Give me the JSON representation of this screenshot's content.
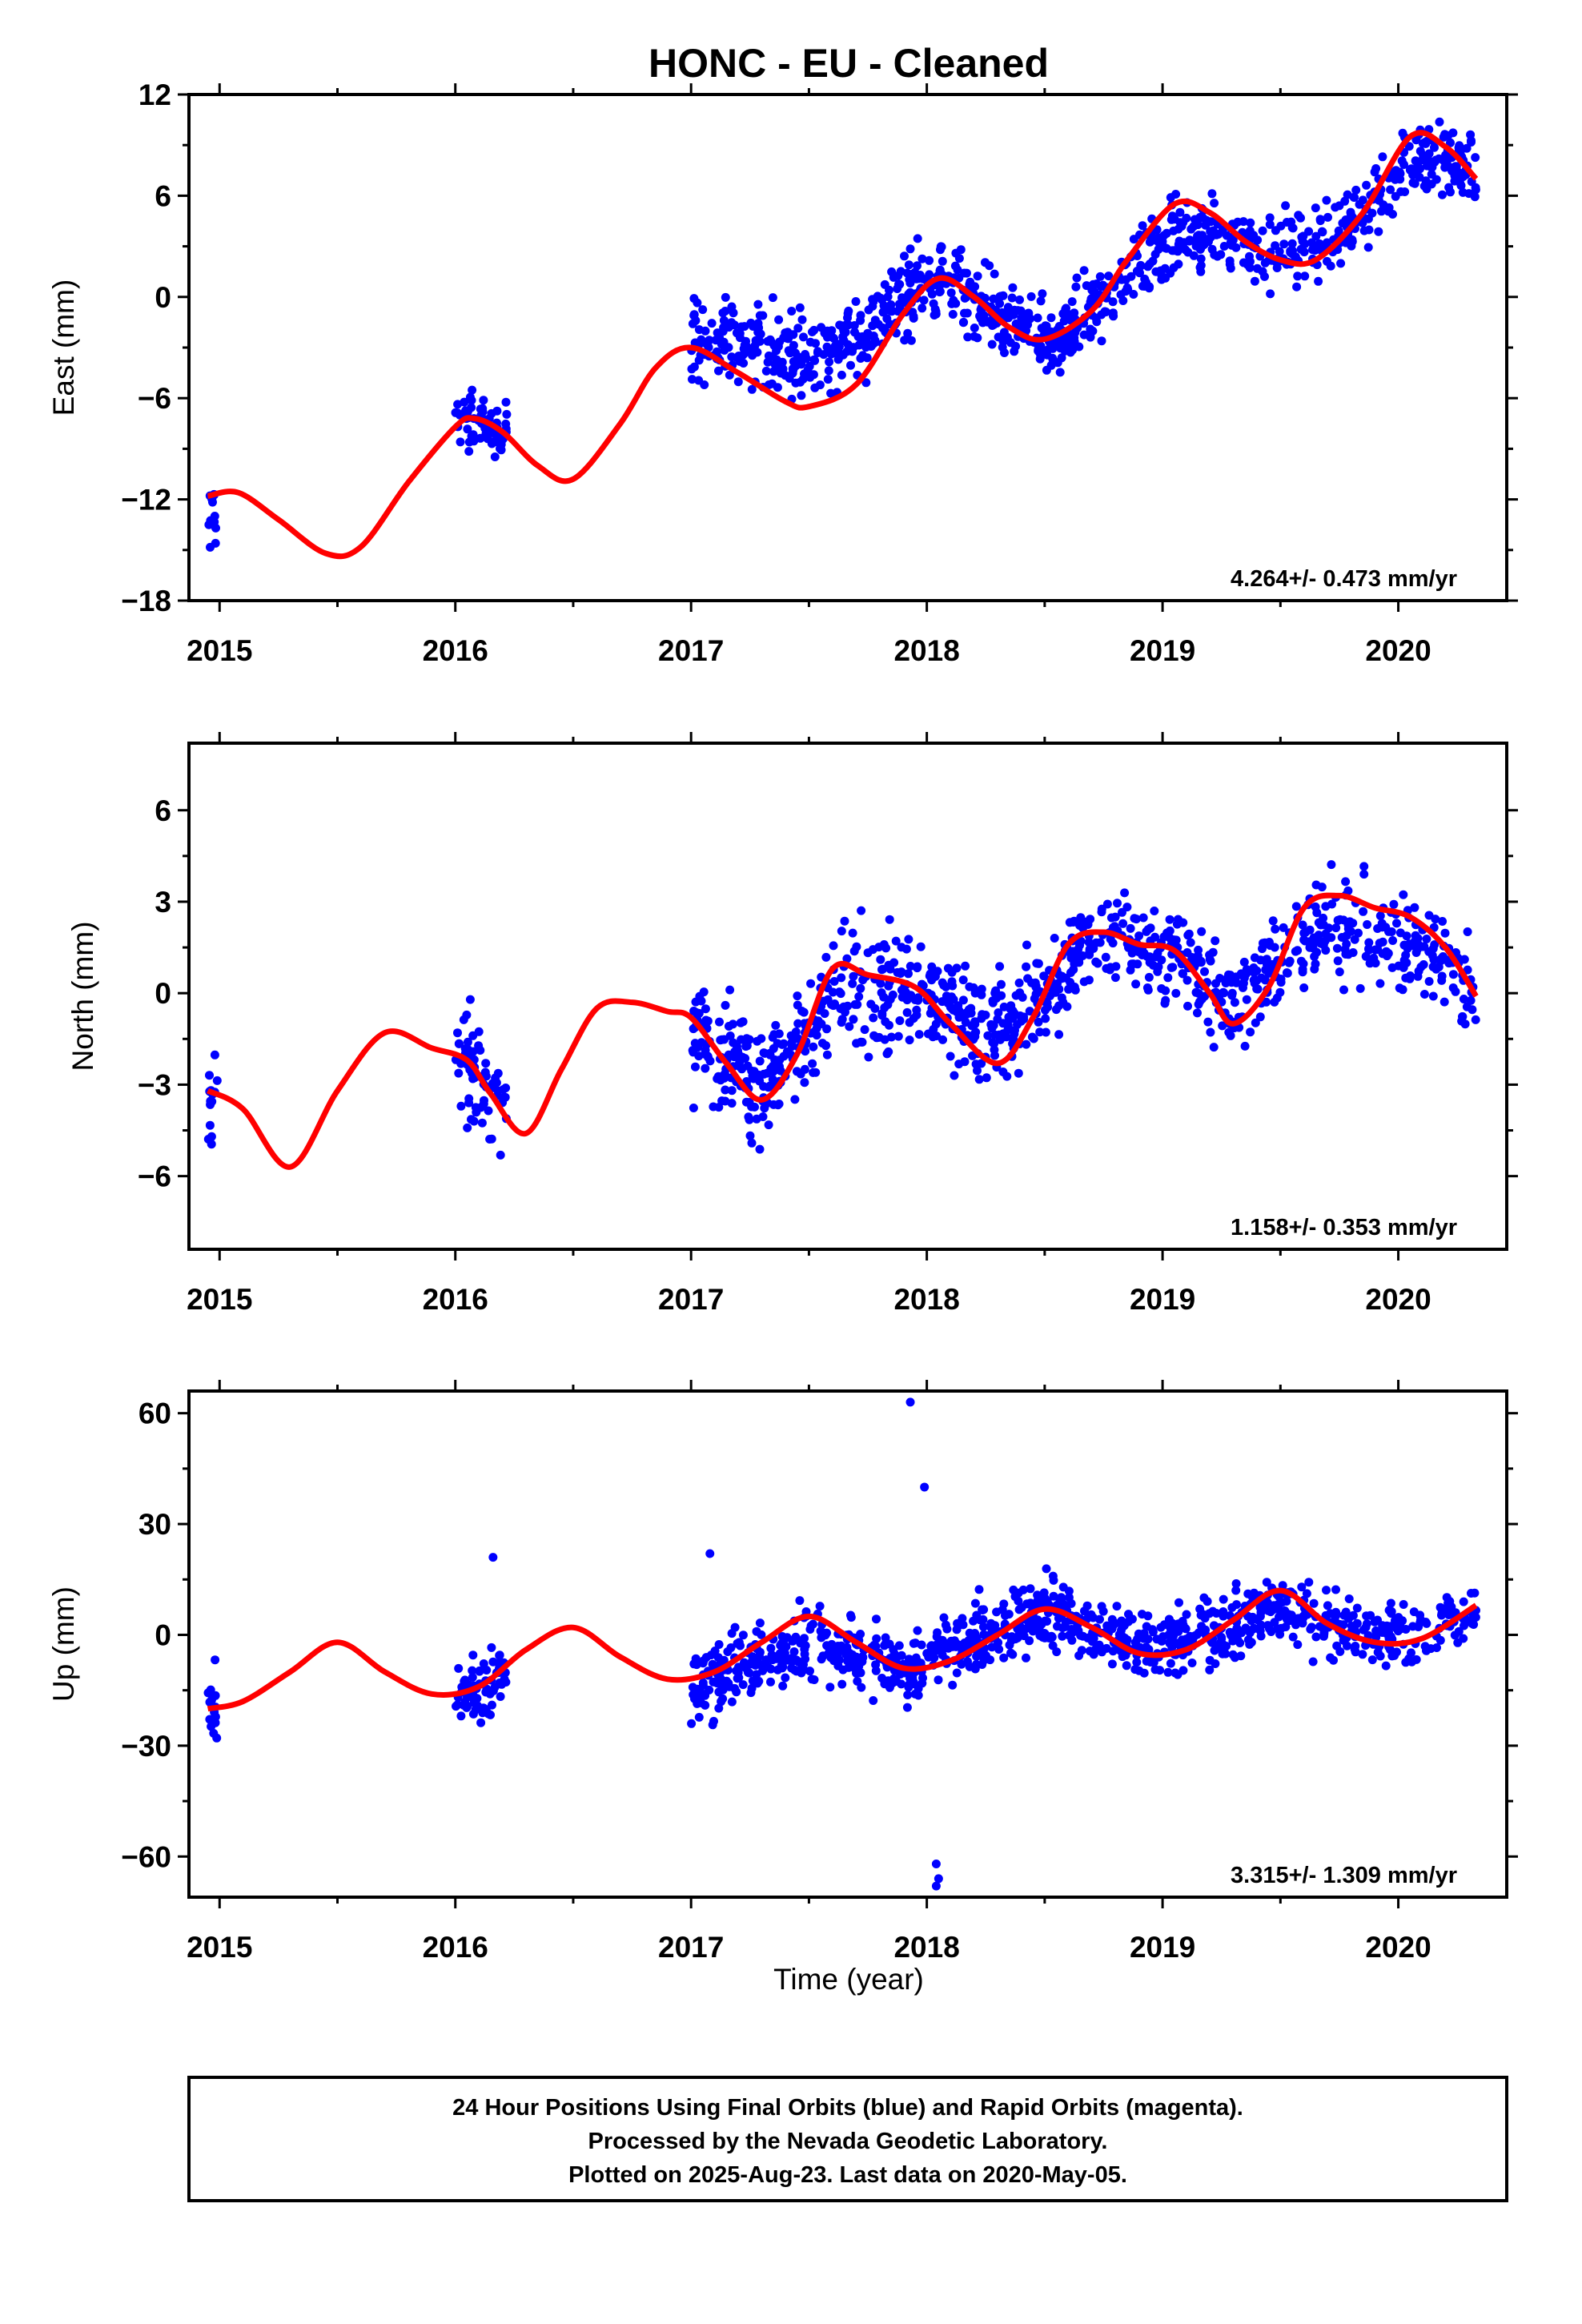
{
  "title": "HONC  - EU - Cleaned",
  "xlabel": "Time (year)",
  "footer": {
    "line1": "24 Hour Positions Using Final Orbits (blue) and Rapid Orbits (magenta).",
    "line2": "Processed by the Nevada Geodetic Laboratory.",
    "line3": "Plotted on 2025-Aug-23. Last data on 2020-May-05."
  },
  "colors": {
    "points": "#0000ff",
    "fit": "#ff0000",
    "frame": "#000000"
  },
  "chart_data": [
    {
      "type": "scatter",
      "component": "East",
      "ylabel": "East (mm)",
      "xlim": [
        2014.87,
        2020.46
      ],
      "ylim": [
        -18,
        12
      ],
      "xticks": [
        "2015",
        "2016",
        "2017",
        "2018",
        "2019",
        "2020"
      ],
      "yticks": [
        "12",
        "6",
        "0",
        "−6",
        "−12",
        "−18"
      ],
      "yticks_values": [
        12,
        6,
        0,
        -6,
        -12,
        -18
      ],
      "rate": "4.264+/- 0.473 mm/yr",
      "fit": {
        "x": [
          2014.95,
          2015.08,
          2015.25,
          2015.45,
          2015.6,
          2015.8,
          2016.0,
          2016.08,
          2016.2,
          2016.35,
          2016.5,
          2016.7,
          2016.85,
          2017.0,
          2017.2,
          2017.4,
          2017.5,
          2017.7,
          2017.9,
          2018.05,
          2018.2,
          2018.35,
          2018.5,
          2018.7,
          2018.85,
          2019.05,
          2019.2,
          2019.35,
          2019.5,
          2019.65,
          2019.85,
          2020.05,
          2020.2,
          2020.33
        ],
        "y": [
          -11.8,
          -11.6,
          -13.2,
          -15.2,
          -14.8,
          -11.0,
          -7.7,
          -7.2,
          -8.0,
          -10.0,
          -10.8,
          -7.5,
          -4.2,
          -3.0,
          -4.5,
          -6.2,
          -6.5,
          -5.2,
          -1.0,
          1.1,
          0.0,
          -1.8,
          -2.5,
          -0.8,
          2.2,
          5.5,
          5.0,
          3.3,
          2.2,
          2.2,
          5.0,
          9.5,
          8.9,
          7.0
        ]
      },
      "clusters": [
        {
          "x0": 2014.95,
          "x1": 2014.99,
          "trend": [
            -15.5,
            -14.0
          ],
          "spread": 3.5,
          "n": 14
        },
        {
          "x0": 2016.0,
          "x1": 2016.22,
          "trend": [
            -7.2,
            -7.8
          ],
          "spread": 2.5,
          "n": 70
        },
        {
          "x0": 2017.0,
          "x1": 2017.99,
          "trend": [
            -1.0,
            2.5
          ],
          "spread": 4.0,
          "n": 320,
          "shape": "east2017"
        },
        {
          "x0": 2018.0,
          "x1": 2018.62,
          "trend": [
            0.5,
            -3.0
          ],
          "spread": 3.5,
          "n": 220,
          "shape": "east2018"
        },
        {
          "x0": 2018.62,
          "x1": 2020.33,
          "trend": [
            -1.5,
            8.0
          ],
          "spread": 3.5,
          "n": 470,
          "shape": "east2019"
        }
      ]
    },
    {
      "type": "scatter",
      "component": "North",
      "ylabel": "North (mm)",
      "xlim": [
        2014.87,
        2020.46
      ],
      "ylim": [
        -8.4,
        8.2
      ],
      "xticks": [
        "2015",
        "2016",
        "2017",
        "2018",
        "2019",
        "2020"
      ],
      "yticks": [
        "6",
        "3",
        "0",
        "−3",
        "−6"
      ],
      "yticks_values": [
        6,
        3,
        0,
        -3,
        -6
      ],
      "rate": "1.158+/- 0.353 mm/yr",
      "fit": {
        "x": [
          2014.95,
          2015.1,
          2015.3,
          2015.5,
          2015.7,
          2015.9,
          2016.05,
          2016.15,
          2016.3,
          2016.45,
          2016.6,
          2016.75,
          2016.9,
          2017.0,
          2017.15,
          2017.3,
          2017.45,
          2017.6,
          2017.75,
          2017.95,
          2018.1,
          2018.3,
          2018.45,
          2018.6,
          2018.75,
          2018.9,
          2019.05,
          2019.2,
          2019.3,
          2019.45,
          2019.6,
          2019.75,
          2019.9,
          2020.05,
          2020.2,
          2020.33
        ],
        "y": [
          -3.2,
          -3.8,
          -5.7,
          -3.2,
          -1.3,
          -1.8,
          -2.2,
          -3.3,
          -4.6,
          -2.5,
          -0.5,
          -0.3,
          -0.6,
          -0.8,
          -2.3,
          -3.5,
          -2.0,
          0.8,
          0.6,
          0.2,
          -1.0,
          -2.3,
          -0.8,
          1.6,
          2.0,
          1.6,
          1.4,
          0.0,
          -1.0,
          0.2,
          2.8,
          3.2,
          2.8,
          2.5,
          1.5,
          -0.1
        ]
      },
      "clusters": [
        {
          "x0": 2014.95,
          "x1": 2014.99,
          "trend": [
            -3.5,
            -3.0
          ],
          "spread": 3.0,
          "n": 14
        },
        {
          "x0": 2016.0,
          "x1": 2016.22,
          "trend": [
            -2.0,
            -4.5
          ],
          "spread": 2.5,
          "n": 70
        },
        {
          "x0": 2017.0,
          "x1": 2017.99,
          "trend": [
            -2.5,
            0.0
          ],
          "spread": 3.0,
          "n": 320,
          "shape": "north2017"
        },
        {
          "x0": 2018.0,
          "x1": 2018.62,
          "trend": [
            0.0,
            0.0
          ],
          "spread": 2.5,
          "n": 220,
          "shape": "north2018"
        },
        {
          "x0": 2018.62,
          "x1": 2020.33,
          "trend": [
            1.5,
            0.0
          ],
          "spread": 2.5,
          "n": 470,
          "shape": "north2019"
        }
      ]
    },
    {
      "type": "scatter",
      "component": "Up",
      "ylabel": "Up (mm)",
      "xlim": [
        2014.87,
        2020.46
      ],
      "ylim": [
        -71,
        66
      ],
      "xticks": [
        "2015",
        "2016",
        "2017",
        "2018",
        "2019",
        "2020"
      ],
      "yticks": [
        "60",
        "30",
        "0",
        "−30",
        "−60"
      ],
      "yticks_values": [
        60,
        30,
        0,
        -30,
        -60
      ],
      "rate": "3.315+/- 1.309 mm/yr",
      "fit": {
        "x": [
          2014.95,
          2015.1,
          2015.3,
          2015.5,
          2015.7,
          2015.9,
          2016.1,
          2016.3,
          2016.5,
          2016.7,
          2016.9,
          2017.1,
          2017.3,
          2017.5,
          2017.7,
          2017.9,
          2018.1,
          2018.3,
          2018.5,
          2018.7,
          2018.9,
          2019.1,
          2019.3,
          2019.5,
          2019.7,
          2019.9,
          2020.1,
          2020.33
        ],
        "y": [
          -20,
          -18,
          -10,
          -2,
          -10,
          -16,
          -14,
          -4,
          2,
          -6,
          -12,
          -10,
          -2,
          5,
          -2,
          -9,
          -7,
          0,
          7,
          2,
          -5,
          -4,
          4,
          12,
          3,
          -2,
          -1,
          8
        ]
      },
      "clusters": [
        {
          "x0": 2014.95,
          "x1": 2014.99,
          "trend": [
            -18,
            -16
          ],
          "spread": 18,
          "n": 14
        },
        {
          "x0": 2016.0,
          "x1": 2016.22,
          "trend": [
            -18,
            -12
          ],
          "spread": 14,
          "n": 70
        },
        {
          "x0": 2017.0,
          "x1": 2017.99,
          "trend": [
            -18,
            -8
          ],
          "spread": 16,
          "n": 320,
          "shape": "up2017"
        },
        {
          "x0": 2018.0,
          "x1": 2018.62,
          "trend": [
            0,
            6
          ],
          "spread": 14,
          "n": 220,
          "shape": "up2018"
        },
        {
          "x0": 2018.62,
          "x1": 2020.33,
          "trend": [
            0,
            4
          ],
          "spread": 14,
          "n": 470,
          "shape": "up2019"
        }
      ],
      "outliers": [
        [
          2017.93,
          63
        ],
        [
          2017.99,
          40
        ],
        [
          2018.04,
          -62
        ],
        [
          2018.05,
          -66
        ],
        [
          2018.04,
          -68
        ],
        [
          2016.16,
          21
        ],
        [
          2017.08,
          22
        ]
      ]
    }
  ]
}
